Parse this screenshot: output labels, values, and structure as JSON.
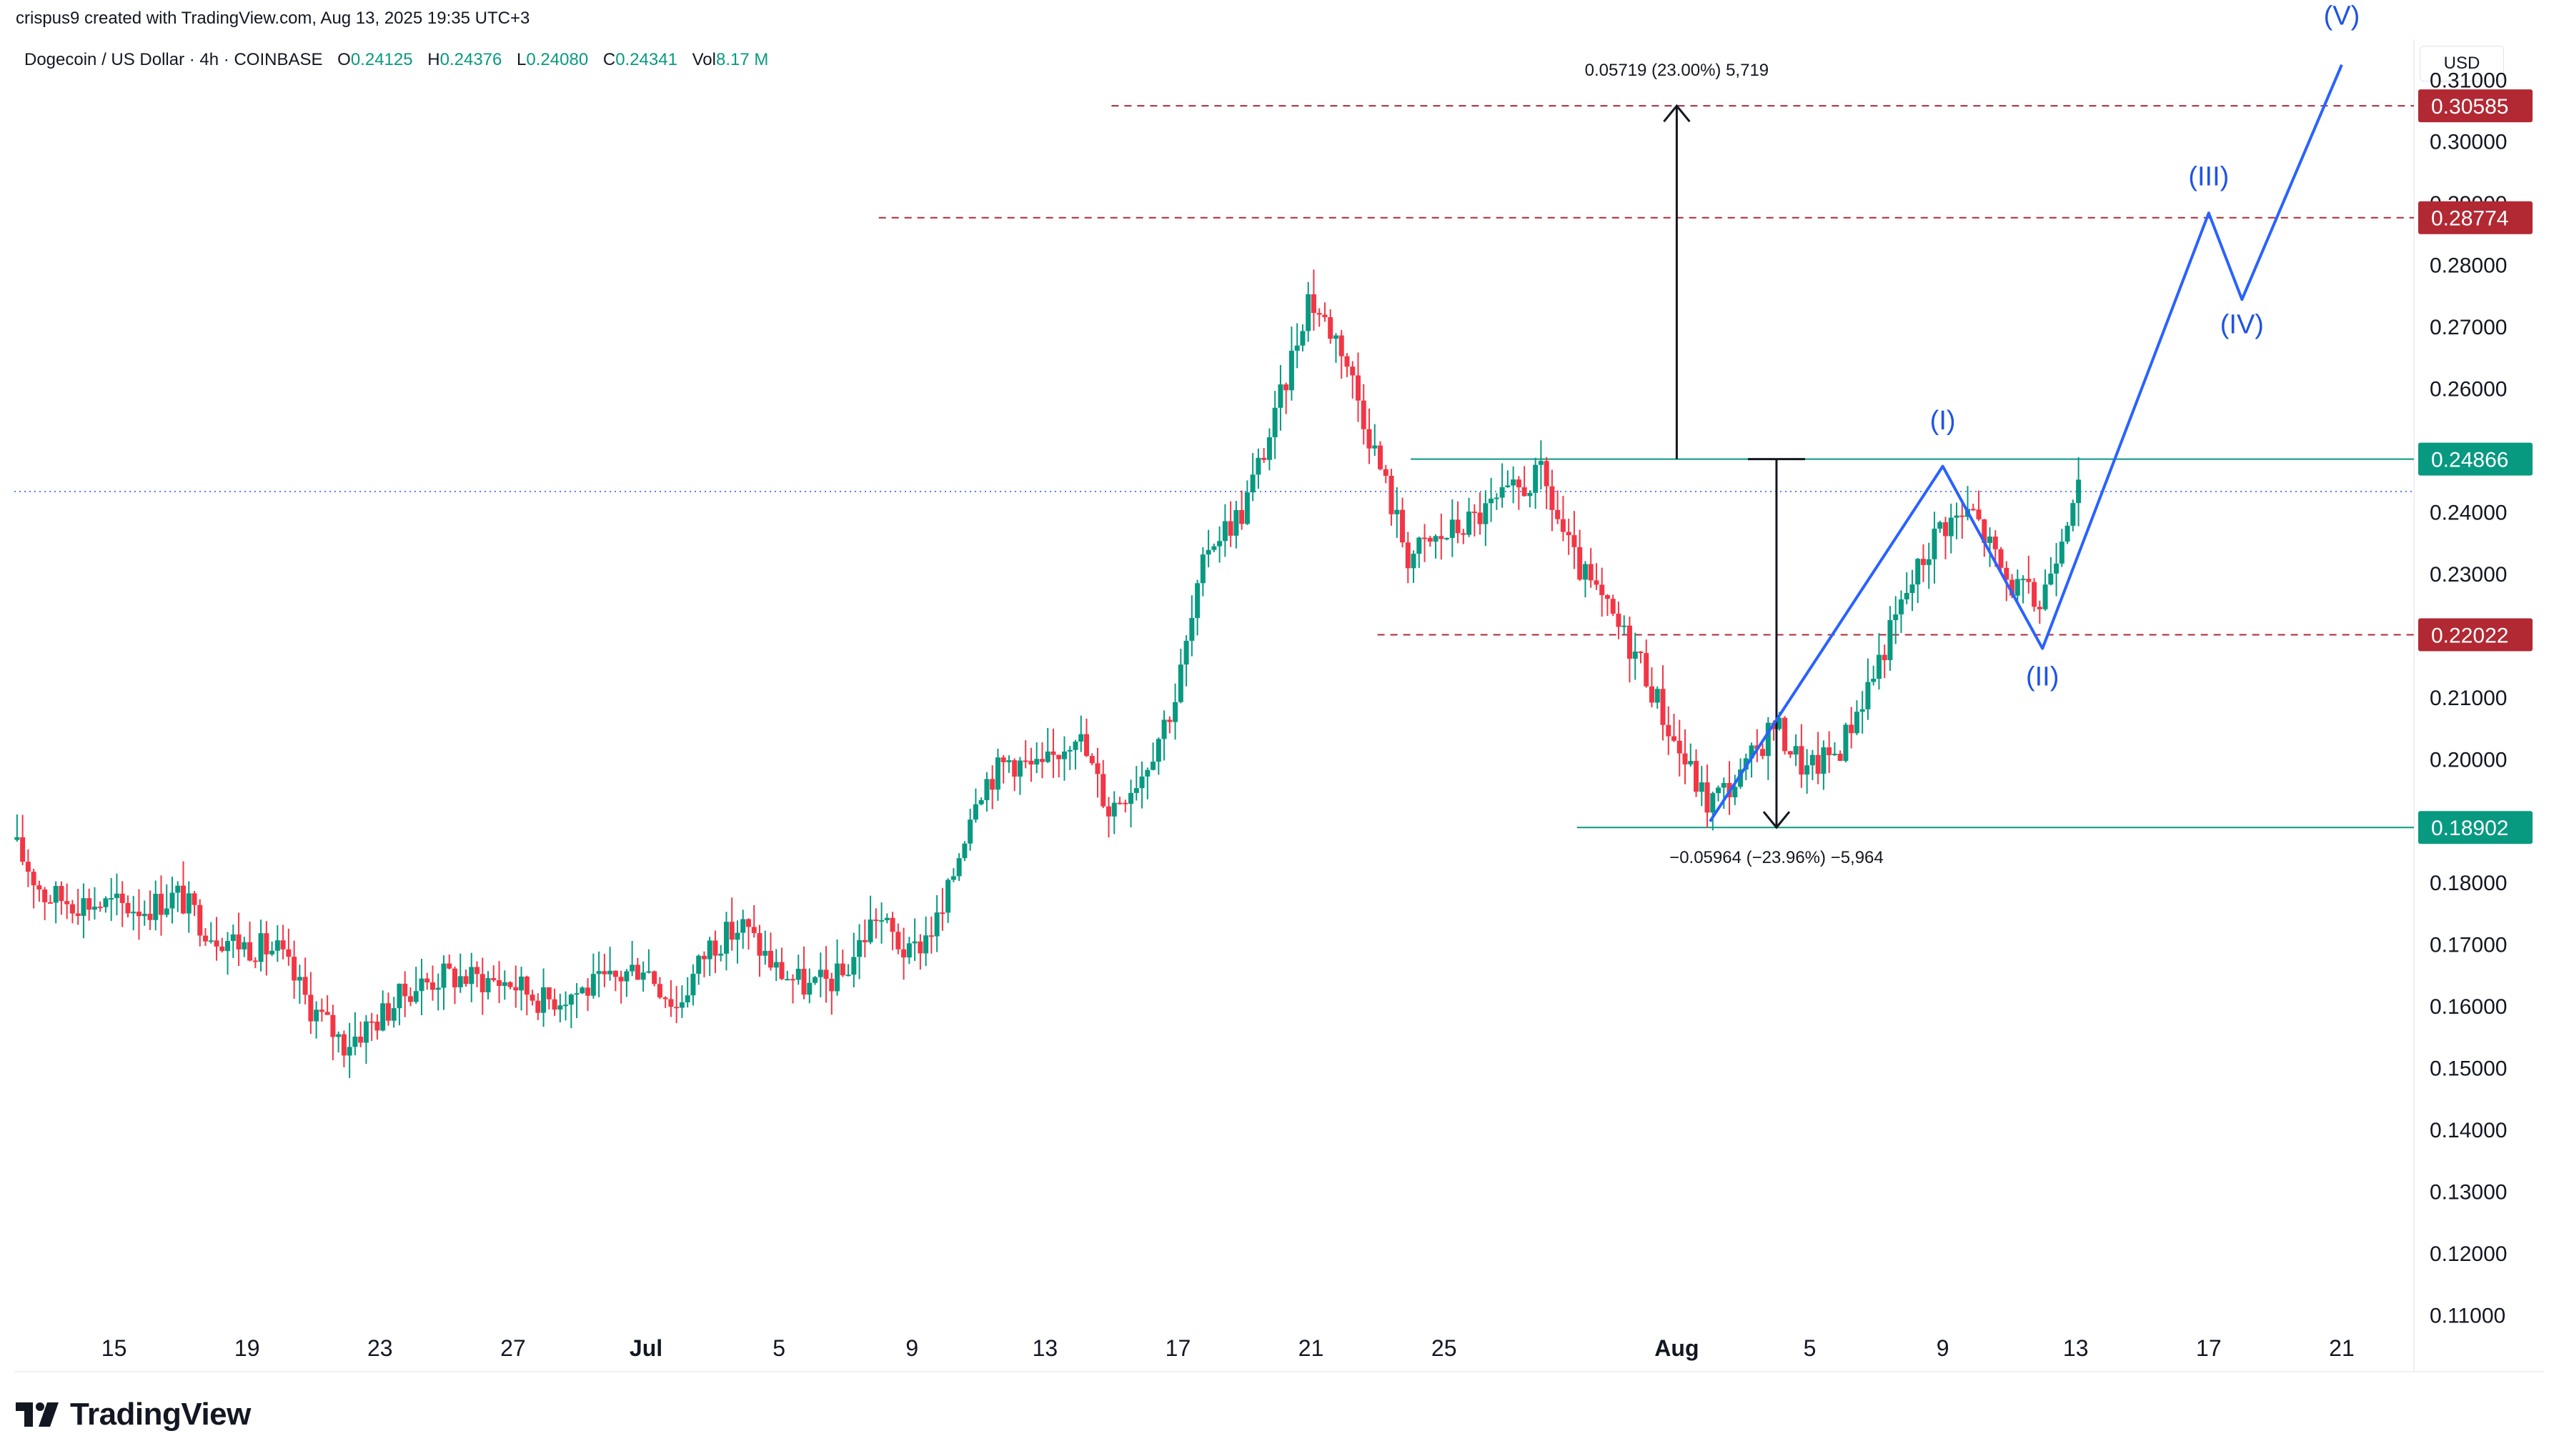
{
  "header": {
    "attribution": "crispus9 created with TradingView.com, Aug 13, 2025 19:35 UTC+3"
  },
  "legend": {
    "symbol": "Dogecoin / US Dollar · 4h · COINBASE",
    "open_label": "O",
    "open": "0.24125",
    "high_label": "H",
    "high": "0.24376",
    "low_label": "L",
    "low": "0.24080",
    "close_label": "C",
    "close": "0.24341",
    "vol_label": "Vol",
    "vol": "8.17 M"
  },
  "currency": "USD",
  "logo": {
    "text": "TradingView"
  },
  "colors": {
    "up": "#089981",
    "down": "#f23645",
    "wave": "#2962ff",
    "wave_label": "#1e53e5",
    "red_tag": "#b22833",
    "green_tag": "#089981",
    "grid_text": "#131722",
    "current_line": "#2962ff"
  },
  "chart_data": {
    "type": "candlestick",
    "symbol": "Dogecoin / US Dollar",
    "interval": "4h",
    "exchange": "COINBASE",
    "x_axis": {
      "ticks": [
        "15",
        "19",
        "23",
        "27",
        "Jul",
        "5",
        "9",
        "13",
        "17",
        "21",
        "25",
        "Aug",
        "5",
        "9",
        "13",
        "17",
        "21"
      ],
      "range": [
        "2025-06-12",
        "2025-08-23"
      ]
    },
    "y_axis": {
      "ticks": [
        "0.31000",
        "0.30000",
        "0.29000",
        "0.28000",
        "0.27000",
        "0.26000",
        "0.25000",
        "0.24000",
        "0.23000",
        "0.22000",
        "0.21000",
        "0.20000",
        "0.19000",
        "0.18000",
        "0.17000",
        "0.16000",
        "0.15000",
        "0.14000",
        "0.13000",
        "0.12000",
        "0.11000"
      ],
      "range": [
        0.109,
        0.312
      ]
    },
    "price_path": [
      {
        "date": "2025-06-12",
        "price": 0.187
      },
      {
        "date": "2025-06-13",
        "price": 0.178
      },
      {
        "date": "2025-06-14",
        "price": 0.177
      },
      {
        "date": "2025-06-16",
        "price": 0.176
      },
      {
        "date": "2025-06-17",
        "price": 0.178
      },
      {
        "date": "2025-06-18",
        "price": 0.172
      },
      {
        "date": "2025-06-19",
        "price": 0.17
      },
      {
        "date": "2025-06-20",
        "price": 0.169
      },
      {
        "date": "2025-06-21",
        "price": 0.16
      },
      {
        "date": "2025-06-22",
        "price": 0.154
      },
      {
        "date": "2025-06-23",
        "price": 0.158
      },
      {
        "date": "2025-06-24",
        "price": 0.163
      },
      {
        "date": "2025-06-25",
        "price": 0.165
      },
      {
        "date": "2025-06-27",
        "price": 0.164
      },
      {
        "date": "2025-06-28",
        "price": 0.161
      },
      {
        "date": "2025-06-30",
        "price": 0.164
      },
      {
        "date": "2025-07-01",
        "price": 0.167
      },
      {
        "date": "2025-07-02",
        "price": 0.16
      },
      {
        "date": "2025-07-03",
        "price": 0.17
      },
      {
        "date": "2025-07-04",
        "price": 0.173
      },
      {
        "date": "2025-07-05",
        "price": 0.166
      },
      {
        "date": "2025-07-06",
        "price": 0.163
      },
      {
        "date": "2025-07-07",
        "price": 0.165
      },
      {
        "date": "2025-07-08",
        "price": 0.175
      },
      {
        "date": "2025-07-09",
        "price": 0.168
      },
      {
        "date": "2025-07-10",
        "price": 0.175
      },
      {
        "date": "2025-07-11",
        "price": 0.195
      },
      {
        "date": "2025-07-12",
        "price": 0.2
      },
      {
        "date": "2025-07-13",
        "price": 0.198
      },
      {
        "date": "2025-07-14",
        "price": 0.205
      },
      {
        "date": "2025-07-15",
        "price": 0.192
      },
      {
        "date": "2025-07-16",
        "price": 0.198
      },
      {
        "date": "2025-07-17",
        "price": 0.21
      },
      {
        "date": "2025-07-18",
        "price": 0.235
      },
      {
        "date": "2025-07-19",
        "price": 0.24
      },
      {
        "date": "2025-07-20",
        "price": 0.255
      },
      {
        "date": "2025-07-21",
        "price": 0.275
      },
      {
        "date": "2025-07-22",
        "price": 0.267
      },
      {
        "date": "2025-07-23",
        "price": 0.25
      },
      {
        "date": "2025-07-24",
        "price": 0.233
      },
      {
        "date": "2025-07-25",
        "price": 0.236
      },
      {
        "date": "2025-07-26",
        "price": 0.239
      },
      {
        "date": "2025-07-28",
        "price": 0.246
      },
      {
        "date": "2025-07-29",
        "price": 0.232
      },
      {
        "date": "2025-07-30",
        "price": 0.224
      },
      {
        "date": "2025-07-31",
        "price": 0.216
      },
      {
        "date": "2025-08-01",
        "price": 0.203
      },
      {
        "date": "2025-08-02",
        "price": 0.193
      },
      {
        "date": "2025-08-03",
        "price": 0.197
      },
      {
        "date": "2025-08-04",
        "price": 0.206
      },
      {
        "date": "2025-08-05",
        "price": 0.198
      },
      {
        "date": "2025-08-06",
        "price": 0.202
      },
      {
        "date": "2025-08-07",
        "price": 0.214
      },
      {
        "date": "2025-08-08",
        "price": 0.227
      },
      {
        "date": "2025-08-09",
        "price": 0.238
      },
      {
        "date": "2025-08-10",
        "price": 0.24
      },
      {
        "date": "2025-08-11",
        "price": 0.229
      },
      {
        "date": "2025-08-12",
        "price": 0.225
      },
      {
        "date": "2025-08-13",
        "price": 0.2434
      }
    ],
    "current_price": 0.24341,
    "price_tags": [
      {
        "label": "0.30585",
        "value": 0.30585,
        "color": "red"
      },
      {
        "label": "0.28774",
        "value": 0.28774,
        "color": "red"
      },
      {
        "label": "0.24866",
        "value": 0.24866,
        "color": "green"
      },
      {
        "label": "0.22022",
        "value": 0.22022,
        "color": "red"
      },
      {
        "label": "0.18902",
        "value": 0.18902,
        "color": "green"
      }
    ],
    "horizontal_levels": [
      {
        "value": 0.30585,
        "style": "dashed",
        "from": "2025-07-15",
        "color": "red"
      },
      {
        "value": 0.28774,
        "style": "dashed",
        "from": "2025-07-08",
        "color": "red"
      },
      {
        "value": 0.24866,
        "style": "solid",
        "from": "2025-07-24",
        "color": "green"
      },
      {
        "value": 0.22022,
        "style": "dashed",
        "from": "2025-07-23",
        "color": "red"
      },
      {
        "value": 0.18902,
        "style": "solid",
        "from": "2025-07-29",
        "color": "green"
      }
    ],
    "measurements": [
      {
        "text": "0.05719 (23.00%) 5,719",
        "date": "2025-08-01",
        "from": 0.24866,
        "to": 0.30585
      },
      {
        "text": "−0.05964 (−23.96%) −5,964",
        "date": "2025-08-04",
        "from": 0.24866,
        "to": 0.18902
      }
    ],
    "elliott_waves": {
      "path": [
        {
          "date": "2025-08-02",
          "price": 0.19
        },
        {
          "date": "2025-08-09",
          "price": 0.2475
        },
        {
          "date": "2025-08-12",
          "price": 0.218
        },
        {
          "date": "2025-08-17",
          "price": 0.2885
        },
        {
          "date": "2025-08-18",
          "price": 0.2745
        },
        {
          "date": "2025-08-21",
          "price": 0.3125
        }
      ],
      "labels": [
        {
          "text": "(I)",
          "date": "2025-08-09",
          "price": 0.2535
        },
        {
          "text": "(II)",
          "date": "2025-08-12",
          "price": 0.212
        },
        {
          "text": "(III)",
          "date": "2025-08-17",
          "price": 0.293
        },
        {
          "text": "(IV)",
          "date": "2025-08-18",
          "price": 0.269
        },
        {
          "text": "(V)",
          "date": "2025-08-21",
          "price": 0.319
        }
      ]
    }
  }
}
